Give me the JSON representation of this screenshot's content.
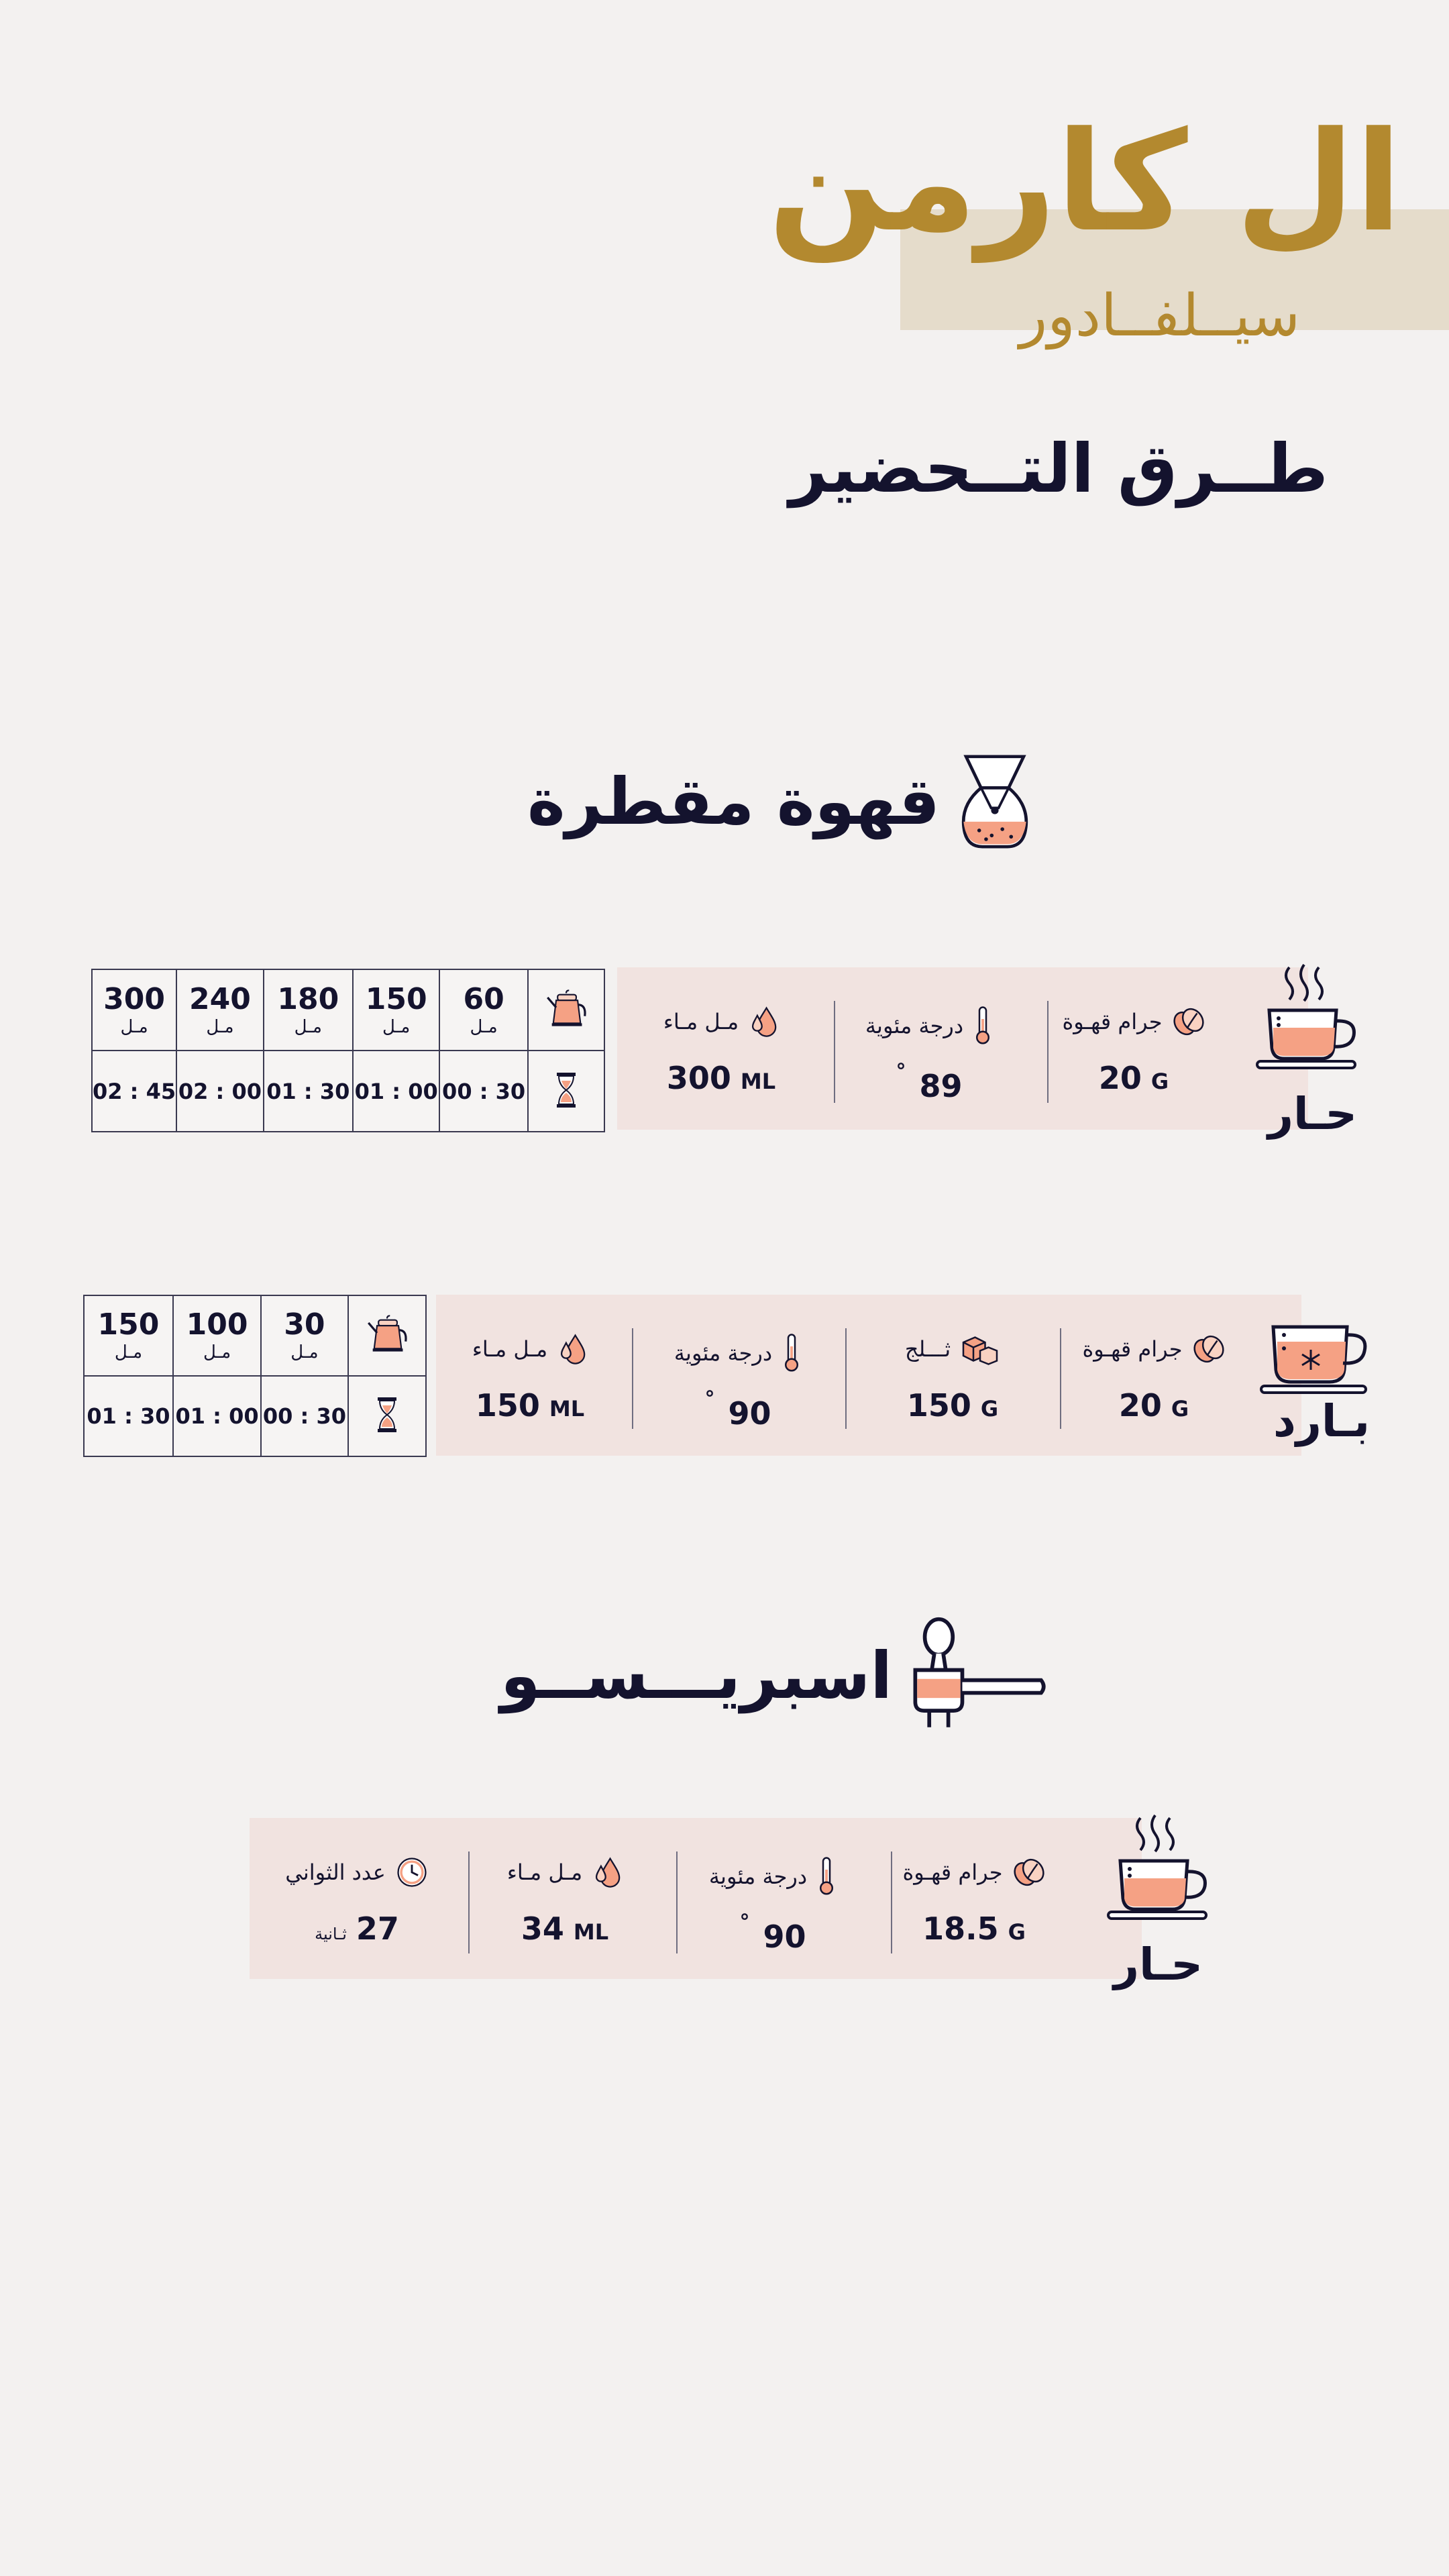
{
  "header": {
    "brand_title": "ال كارمن",
    "brand_subtitle": "سيــلفــادور",
    "page_title": "طــرق التــحضير"
  },
  "drip": {
    "heading": "قهوة مقطرة",
    "hot": {
      "label": "حـار",
      "coffee": {
        "label": "جرام قهـوة",
        "value": "20",
        "unit": "G"
      },
      "temp": {
        "label": "درجة مئوية",
        "value": "89",
        "unit": "°"
      },
      "water": {
        "label": "مـل مـاء",
        "value": "300",
        "unit": "ML"
      },
      "pours": [
        "300",
        "240",
        "180",
        "150",
        "60"
      ],
      "pour_unit": "مـل",
      "times": [
        "02 : 45",
        "02 : 00",
        "01 : 30",
        "01 : 00",
        "00 : 30"
      ]
    },
    "cold": {
      "label": "بـارد",
      "coffee": {
        "label": "جرام قهـوة",
        "value": "20",
        "unit": "G"
      },
      "ice": {
        "label": "ثـــلج",
        "value": "150",
        "unit": "G"
      },
      "temp": {
        "label": "درجة مئوية",
        "value": "90",
        "unit": "°"
      },
      "water": {
        "label": "مـل مـاء",
        "value": "150",
        "unit": "ML"
      },
      "pours": [
        "150",
        "100",
        "30"
      ],
      "pour_unit": "مـل",
      "times": [
        "01 : 30",
        "01 : 00",
        "00 : 30"
      ]
    }
  },
  "espresso": {
    "heading": "اسبريـــســو",
    "hot": {
      "label": "حـار",
      "coffee": {
        "label": "جرام قهـوة",
        "value": "18.5",
        "unit": "G"
      },
      "temp": {
        "label": "درجة مئوية",
        "value": "90",
        "unit": "°"
      },
      "water": {
        "label": "مـل مـاء",
        "value": "34",
        "unit": "ML"
      },
      "seconds": {
        "label": "عدد الثواني",
        "value": "27",
        "unit": "ثـانية"
      }
    }
  },
  "colors": {
    "gold": "#b3892f",
    "navy": "#14132e",
    "panel": "#f1e3e0",
    "accent": "#f5a184"
  }
}
